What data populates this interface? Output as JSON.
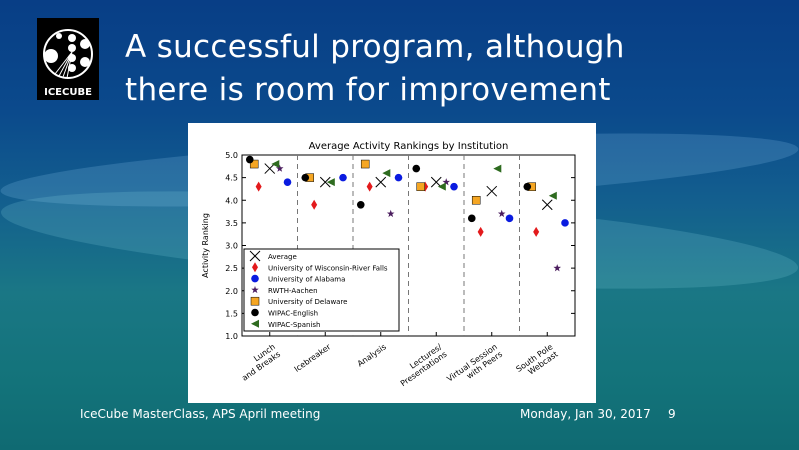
{
  "slide": {
    "title_line1": "A successful program, although",
    "title_line2": "there is room for improvement",
    "logo_text": "ICECUBE",
    "footer_left": "IceCube MasterClass, APS April meeting",
    "footer_date": "Monday, Jan 30, 2017",
    "page_number": "9"
  },
  "chart_data": {
    "type": "scatter",
    "title": "Average Activity Rankings by Institution",
    "xlabel": "",
    "ylabel": "Activity Ranking",
    "ylim": [
      1.0,
      5.0
    ],
    "yticks": [
      "1.0",
      "1.5",
      "2.0",
      "2.5",
      "3.0",
      "3.5",
      "4.0",
      "4.5",
      "5.0"
    ],
    "categories": [
      [
        "Lunch",
        "and Breaks"
      ],
      [
        "Icebreaker"
      ],
      [
        "Analysis"
      ],
      [
        "Lectures/",
        "Presentations"
      ],
      [
        "Virtual Session",
        "with Peers"
      ],
      [
        "South Pole",
        "Webcast"
      ]
    ],
    "legend_position": "lower-left",
    "series": [
      {
        "name": "Average",
        "marker": "x",
        "color": "#000000",
        "values": [
          4.7,
          4.4,
          4.4,
          4.4,
          4.2,
          3.9
        ]
      },
      {
        "name": "University of Wisconsin-River Falls",
        "marker": "diamond",
        "color": "#e31a1c",
        "values": [
          4.3,
          3.9,
          4.3,
          4.3,
          3.3,
          3.3
        ]
      },
      {
        "name": "University of Alabama",
        "marker": "circle",
        "color": "#0a1be0",
        "values": [
          4.4,
          4.5,
          4.5,
          4.3,
          3.6,
          3.5
        ]
      },
      {
        "name": "RWTH-Aachen",
        "marker": "star",
        "color": "#4b1d5e",
        "values": [
          4.7,
          null,
          3.7,
          4.4,
          3.7,
          2.5
        ]
      },
      {
        "name": "University of Delaware",
        "marker": "square",
        "color": "#f5a623",
        "values": [
          4.8,
          4.5,
          4.8,
          4.3,
          4.0,
          4.3
        ]
      },
      {
        "name": "WIPAC-English",
        "marker": "circle",
        "color": "#000000",
        "values": [
          4.9,
          4.5,
          3.9,
          4.7,
          3.6,
          4.3
        ]
      },
      {
        "name": "WIPAC-Spanish",
        "marker": "triangle-left",
        "color": "#2e6b1f",
        "values": [
          4.8,
          4.4,
          4.6,
          4.3,
          4.7,
          4.1
        ]
      }
    ]
  }
}
